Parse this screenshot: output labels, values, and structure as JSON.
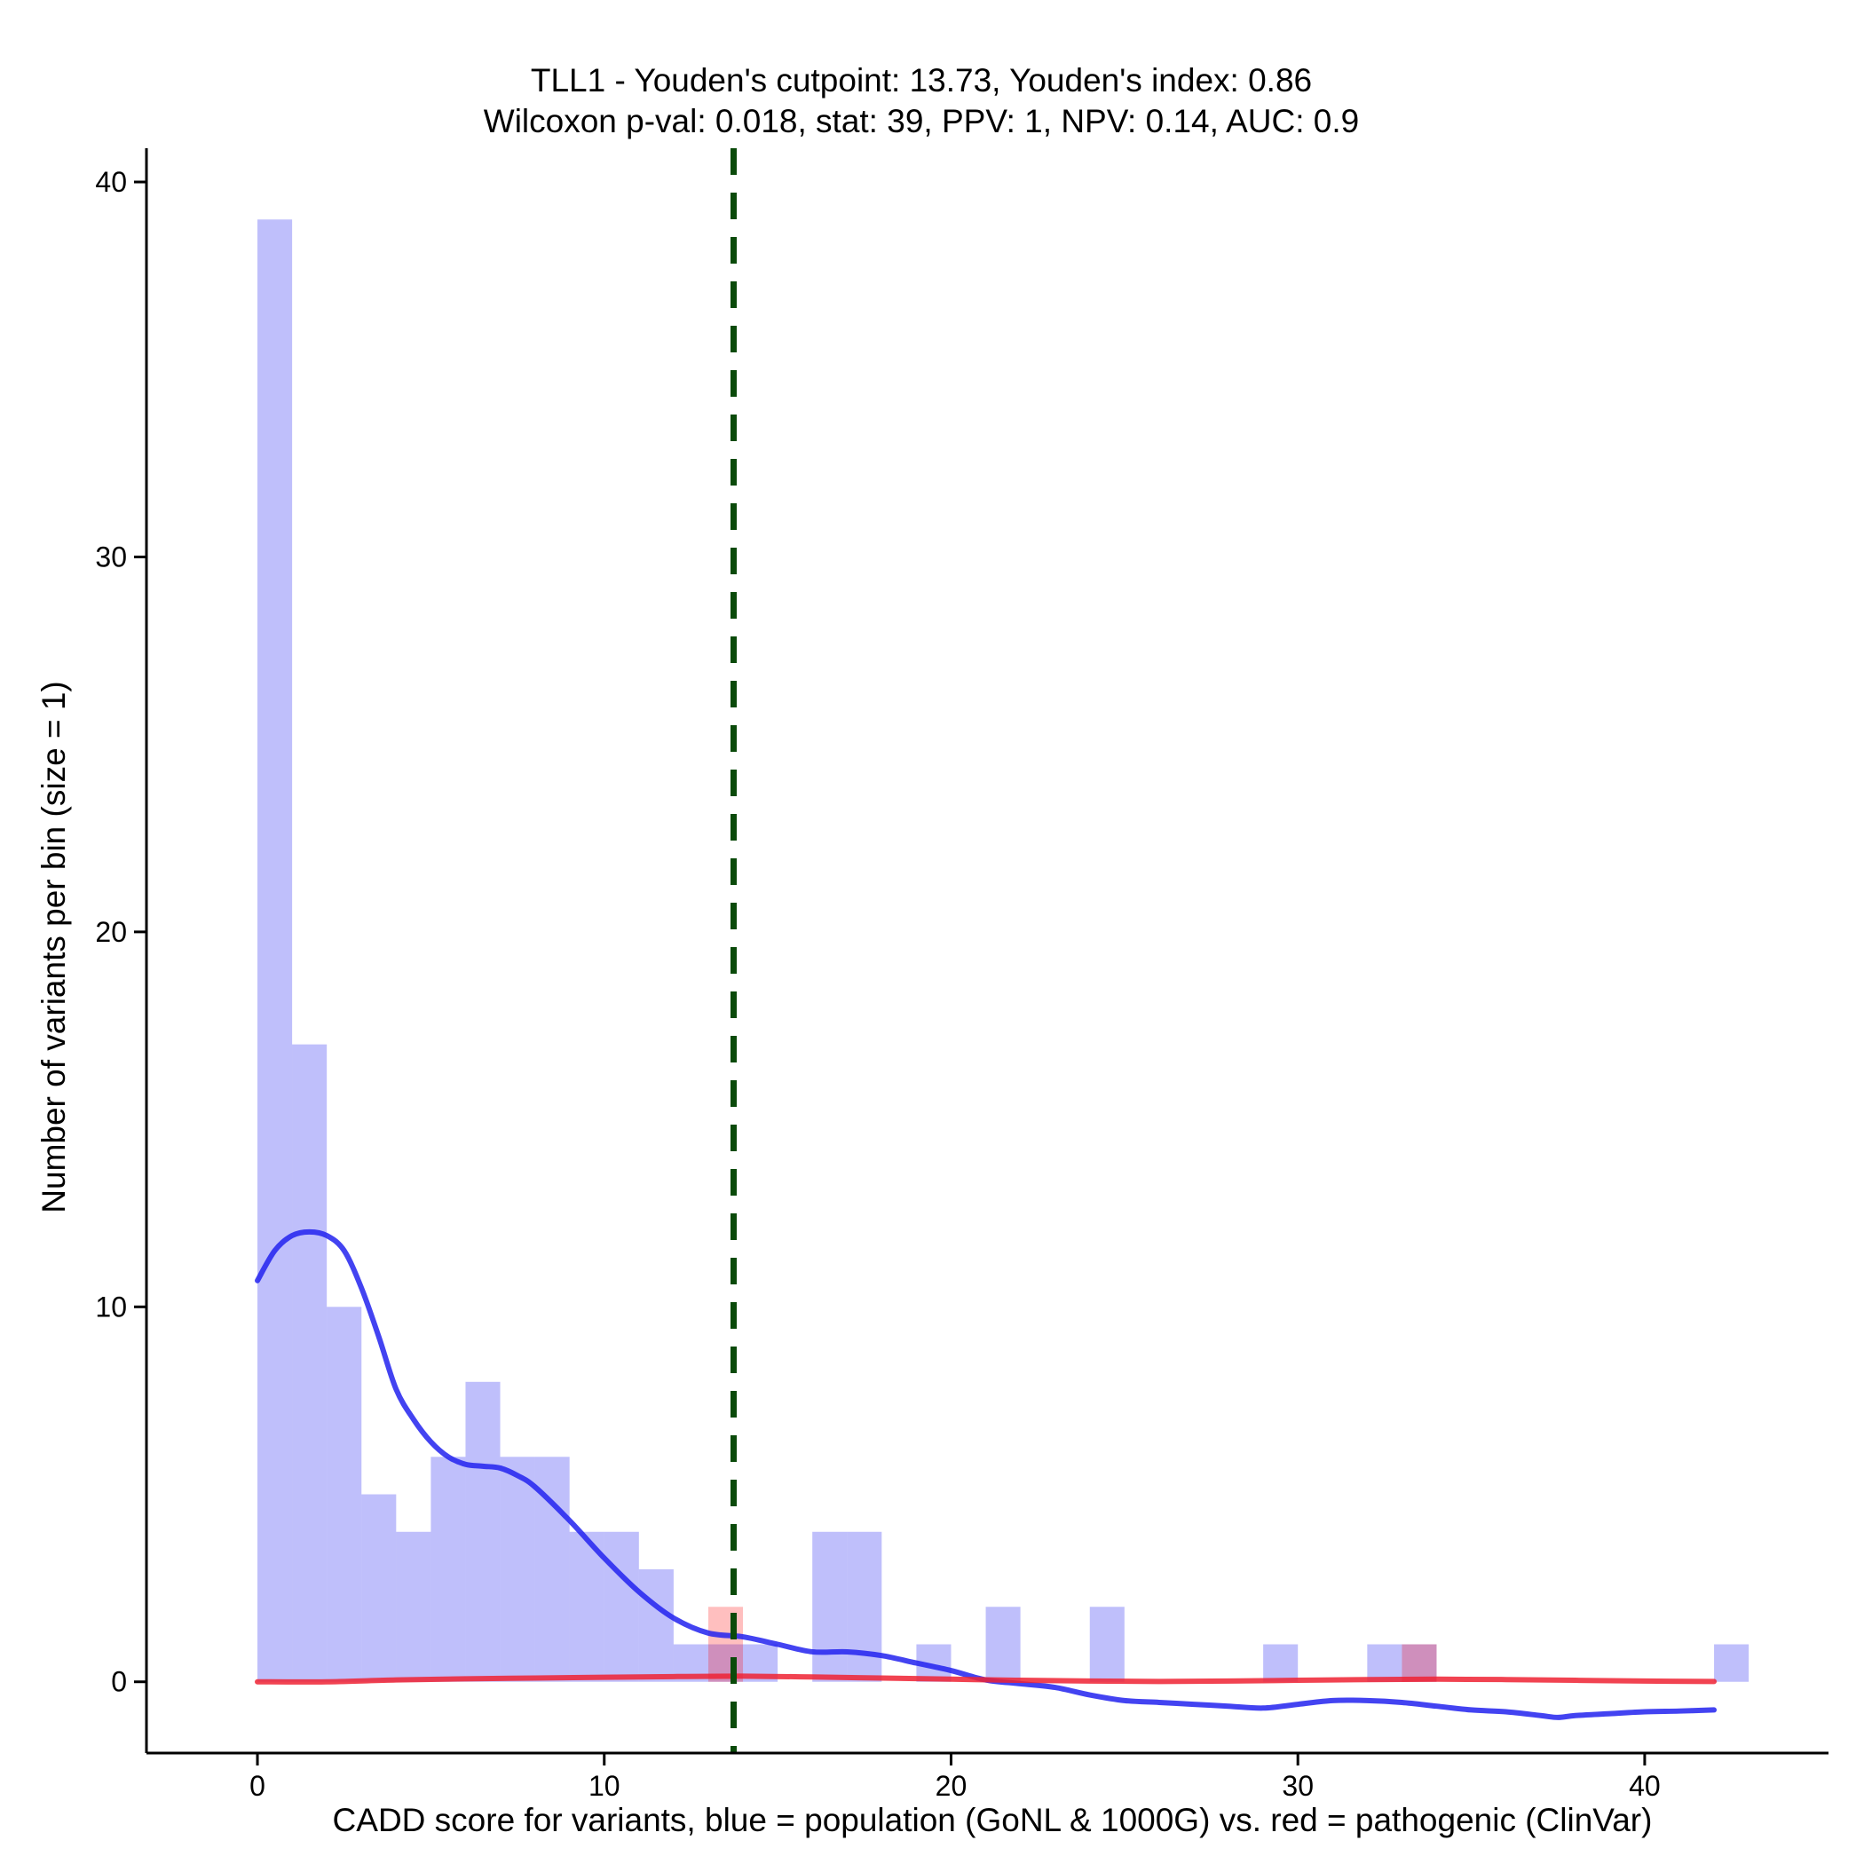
{
  "chart_data": {
    "type": "bar",
    "title": "TLL1 - Youden's cutpoint: 13.73, Youden's index: 0.86",
    "subtitle": "Wilcoxon p-val: 0.018, stat: 39, PPV: 1, NPV: 0.14, AUC: 0.9",
    "xlabel": "CADD score for variants, blue = population (GoNL & 1000G) vs. red = pathogenic (ClinVar)",
    "ylabel": "Number of variants per bin (size = 1)",
    "xlim": [
      -3.2,
      45.3
    ],
    "ylim": [
      -1.9,
      40.9
    ],
    "x_ticks": [
      0,
      10,
      20,
      30,
      40
    ],
    "y_ticks": [
      0,
      10,
      20,
      30,
      40
    ],
    "bin_width": 1,
    "series": [
      {
        "kind": "histogram",
        "color": "#0000ee",
        "opacity": 0.25,
        "bins": [
          {
            "x": 0,
            "count": 39
          },
          {
            "x": 1,
            "count": 17
          },
          {
            "x": 2,
            "count": 10
          },
          {
            "x": 3,
            "count": 5
          },
          {
            "x": 4,
            "count": 4
          },
          {
            "x": 5,
            "count": 6
          },
          {
            "x": 6,
            "count": 8
          },
          {
            "x": 7,
            "count": 6
          },
          {
            "x": 8,
            "count": 6
          },
          {
            "x": 9,
            "count": 4
          },
          {
            "x": 10,
            "count": 4
          },
          {
            "x": 11,
            "count": 3
          },
          {
            "x": 12,
            "count": 1
          },
          {
            "x": 13,
            "count": 1
          },
          {
            "x": 14,
            "count": 1
          },
          {
            "x": 16,
            "count": 4
          },
          {
            "x": 17,
            "count": 4
          },
          {
            "x": 19,
            "count": 1
          },
          {
            "x": 21,
            "count": 2
          },
          {
            "x": 24,
            "count": 2
          },
          {
            "x": 29,
            "count": 1
          },
          {
            "x": 32,
            "count": 1
          },
          {
            "x": 33,
            "count": 1
          },
          {
            "x": 42,
            "count": 1
          }
        ]
      },
      {
        "kind": "histogram",
        "color": "#ff0000",
        "opacity": 0.25,
        "bins": [
          {
            "x": 13,
            "count": 2
          },
          {
            "x": 33,
            "count": 1
          }
        ]
      },
      {
        "kind": "density",
        "color": "#2222ee",
        "x": [
          0,
          0.5,
          1,
          1.5,
          2,
          2.5,
          3,
          3.5,
          4,
          4.5,
          5,
          5.5,
          6,
          6.5,
          7,
          7.5,
          8,
          9,
          10,
          11,
          12,
          13,
          14,
          15,
          16,
          17,
          18,
          19,
          20,
          21,
          22,
          23,
          24,
          25,
          26,
          27,
          28,
          29,
          30,
          31,
          32,
          33,
          34,
          35,
          36,
          37,
          37.5,
          38,
          39,
          40,
          41,
          42
        ],
        "y": [
          10.7,
          11.5,
          11.9,
          12.0,
          11.9,
          11.5,
          10.5,
          9.2,
          7.8,
          7.0,
          6.4,
          6.0,
          5.8,
          5.75,
          5.7,
          5.5,
          5.2,
          4.3,
          3.3,
          2.4,
          1.7,
          1.3,
          1.2,
          1.0,
          0.8,
          0.8,
          0.7,
          0.5,
          0.3,
          0.05,
          -0.05,
          -0.15,
          -0.35,
          -0.5,
          -0.55,
          -0.6,
          -0.65,
          -0.7,
          -0.6,
          -0.5,
          -0.5,
          -0.55,
          -0.65,
          -0.75,
          -0.8,
          -0.9,
          -0.95,
          -0.9,
          -0.85,
          -0.8,
          -0.78,
          -0.75
        ]
      },
      {
        "kind": "density",
        "color": "#ee2233",
        "x": [
          0,
          2,
          4,
          6,
          8,
          10,
          12,
          14,
          16,
          18,
          20,
          22,
          24,
          26,
          28,
          30,
          32,
          34,
          36,
          38,
          40,
          42
        ],
        "y": [
          0.0,
          0.0,
          0.05,
          0.08,
          0.1,
          0.12,
          0.14,
          0.15,
          0.13,
          0.1,
          0.07,
          0.04,
          0.02,
          0.01,
          0.02,
          0.04,
          0.06,
          0.07,
          0.06,
          0.04,
          0.02,
          0.01
        ]
      }
    ],
    "cutpoint": {
      "x": 13.73,
      "color": "#0a4a0a",
      "style": "dashed"
    },
    "grid": false,
    "legend": "none"
  }
}
